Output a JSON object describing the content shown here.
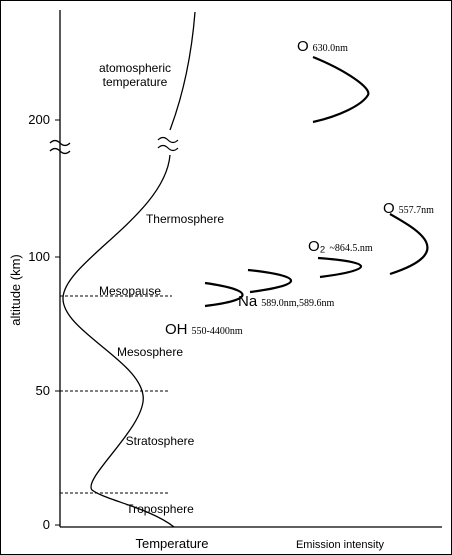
{
  "axes": {
    "y_label": "altitude (km)",
    "x_left_label": "Temperature",
    "x_right_label": "Emission intensity",
    "y_ticks": [
      "0",
      "50",
      "100",
      "200"
    ]
  },
  "temperature_label": [
    "atomospheric",
    "temperature"
  ],
  "regions": [
    "Thermosphere",
    "Mesopause",
    "Mesosphere",
    "Stratosphere",
    "Troposphere"
  ],
  "emissions": [
    {
      "species": "O",
      "wavelength": "630.0nm"
    },
    {
      "species": "O",
      "wavelength": "557.7nm"
    },
    {
      "species": "O₂",
      "wavelength": "~864.5.nm"
    },
    {
      "species": "Na",
      "wavelength": "589.0nm,589.6nm"
    },
    {
      "species": "OH",
      "wavelength": "550-4400nm"
    }
  ]
}
